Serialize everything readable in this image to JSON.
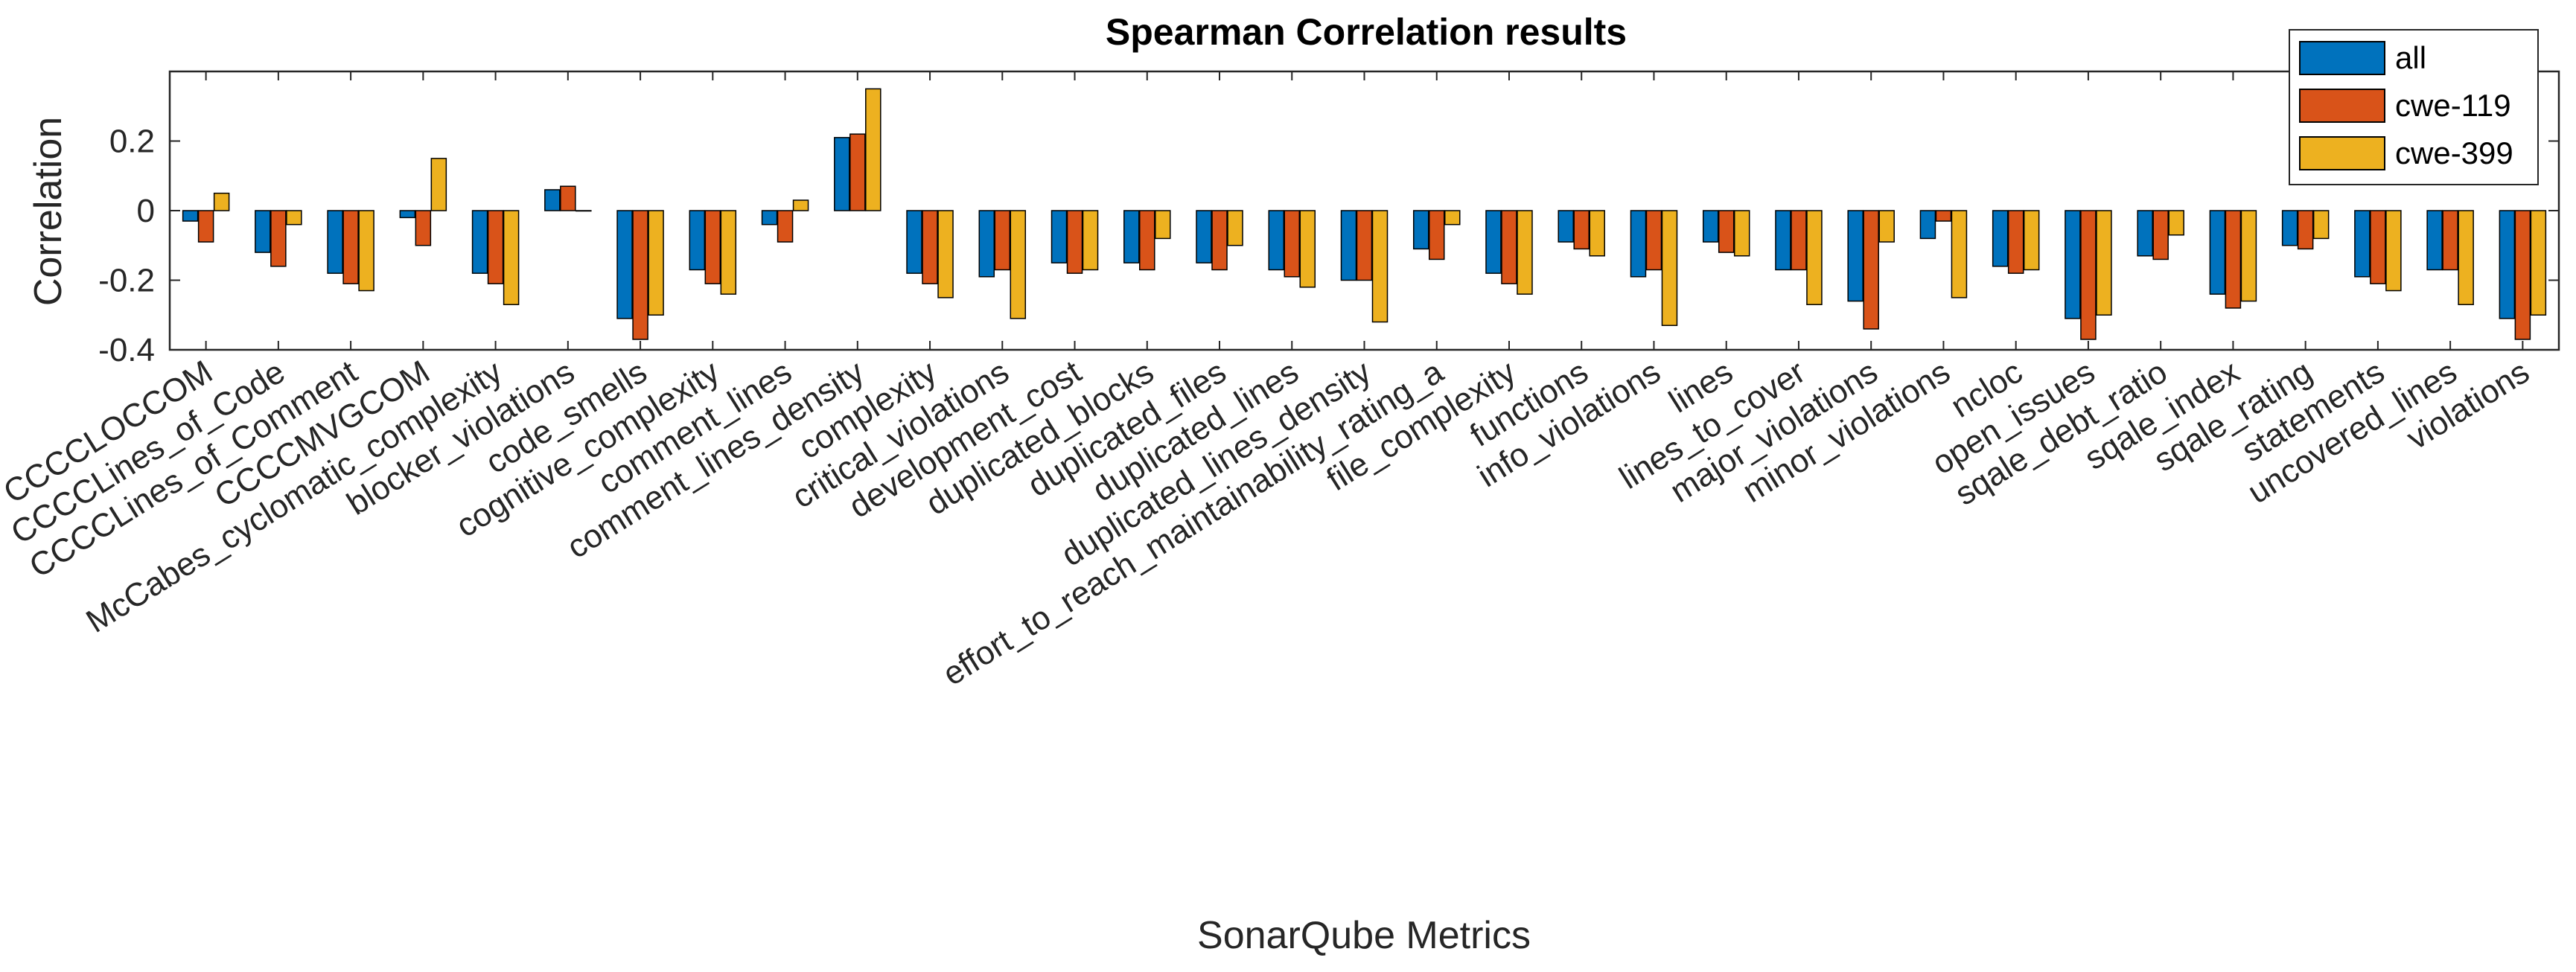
{
  "chart_data": {
    "type": "bar",
    "title": "Spearman Correlation results",
    "xlabel": "SonarQube Metrics",
    "ylabel": "Correlation",
    "ylim": [
      -0.4,
      0.4
    ],
    "yticks": [
      -0.4,
      -0.2,
      0,
      0.2
    ],
    "ytick_labels": [
      "-0.4",
      "-0.2",
      "0",
      "0.2"
    ],
    "grid": false,
    "legend_position": "top-right",
    "categories": [
      "CCCCLOCCOM",
      "CCCCLines_of_Code",
      "CCCCLines_of_Comment",
      "CCCCMVGCOM",
      "McCabes_cyclomatic_complexity",
      "blocker_violations",
      "code_smells",
      "cognitive_complexity",
      "comment_lines",
      "comment_lines_density",
      "complexity",
      "critical_violations",
      "development_cost",
      "duplicated_blocks",
      "duplicated_files",
      "duplicated_lines",
      "duplicated_lines_density",
      "effort_to_reach_maintainability_rating_a",
      "file_complexity",
      "functions",
      "info_violations",
      "lines",
      "lines_to_cover",
      "major_violations",
      "minor_violations",
      "ncloc",
      "open_issues",
      "sqale_debt_ratio",
      "sqale_index",
      "sqale_rating",
      "statements",
      "uncovered_lines",
      "violations"
    ],
    "series": [
      {
        "name": "all",
        "color": "#0072BD",
        "values": [
          -0.03,
          -0.12,
          -0.18,
          -0.02,
          -0.18,
          0.06,
          -0.31,
          -0.17,
          -0.04,
          0.21,
          -0.18,
          -0.19,
          -0.15,
          -0.15,
          -0.15,
          -0.17,
          -0.2,
          -0.11,
          -0.18,
          -0.09,
          -0.19,
          -0.09,
          -0.17,
          -0.26,
          -0.08,
          -0.16,
          -0.31,
          -0.13,
          -0.24,
          -0.1,
          -0.19,
          -0.17,
          -0.31
        ]
      },
      {
        "name": "cwe-119",
        "color": "#D95319",
        "values": [
          -0.09,
          -0.16,
          -0.21,
          -0.1,
          -0.21,
          0.07,
          -0.37,
          -0.21,
          -0.09,
          0.22,
          -0.21,
          -0.17,
          -0.18,
          -0.17,
          -0.17,
          -0.19,
          -0.2,
          -0.14,
          -0.21,
          -0.11,
          -0.17,
          -0.12,
          -0.17,
          -0.34,
          -0.03,
          -0.18,
          -0.37,
          -0.14,
          -0.28,
          -0.11,
          -0.21,
          -0.17,
          -0.37
        ]
      },
      {
        "name": "cwe-399",
        "color": "#EDB120",
        "values": [
          0.05,
          -0.04,
          -0.23,
          0.15,
          -0.27,
          0.0,
          -0.3,
          -0.24,
          0.03,
          0.35,
          -0.25,
          -0.31,
          -0.17,
          -0.08,
          -0.1,
          -0.22,
          -0.32,
          -0.04,
          -0.24,
          -0.13,
          -0.33,
          -0.13,
          -0.27,
          -0.09,
          -0.25,
          -0.17,
          -0.3,
          -0.07,
          -0.26,
          -0.08,
          -0.23,
          -0.27,
          -0.3
        ]
      }
    ]
  }
}
